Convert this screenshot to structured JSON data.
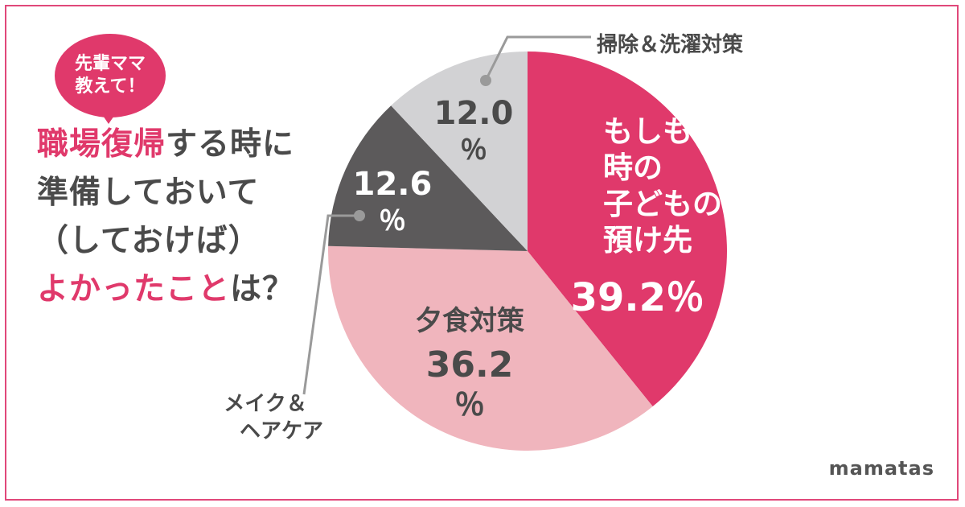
{
  "bubble": {
    "lines": [
      "先輩ママ",
      "教えて！"
    ]
  },
  "question": {
    "line1": [
      {
        "text": "職場復帰",
        "accent": true
      },
      {
        "text": "する時に",
        "accent": false
      }
    ],
    "line2": [
      {
        "text": "準備しておいて",
        "accent": false
      }
    ],
    "line3": [
      {
        "text": "（しておけば）",
        "accent": false
      }
    ],
    "line4": [
      {
        "text": "よかったこと",
        "accent": true
      },
      {
        "text": "は？",
        "accent": false
      }
    ]
  },
  "brand": "mamatas",
  "colors": {
    "accent": "#e0396b",
    "dark_slice": "#5c5a5b",
    "light_gray_slice": "#d2d2d4",
    "pink_slice": "#f0b5bd",
    "text_gray": "#4a4a4a",
    "frame": "#e0487a"
  },
  "chart_data": {
    "type": "pie",
    "title": "",
    "unit": "%",
    "slices": [
      {
        "label": "もしもの時の子どもの預け先",
        "label_lines": [
          "もしもの",
          "時の",
          "子どもの",
          "預け先"
        ],
        "value": 39.2,
        "value_text": "39.2％",
        "color": "#e0396b"
      },
      {
        "label": "夕食対策",
        "label_lines": [
          "夕食対策"
        ],
        "value": 36.2,
        "value_text": "36.2％",
        "color": "#f0b5bd"
      },
      {
        "label": "メイク＆ヘアケア",
        "label_lines": [
          "メイク＆",
          "ヘアケア"
        ],
        "value": 12.6,
        "value_text": "12.6％",
        "color": "#5c5a5b"
      },
      {
        "label": "掃除＆洗濯対策",
        "label_lines": [
          "掃除＆洗濯対策"
        ],
        "value": 12.0,
        "value_text": "12.0％",
        "color": "#d2d2d4"
      }
    ]
  }
}
